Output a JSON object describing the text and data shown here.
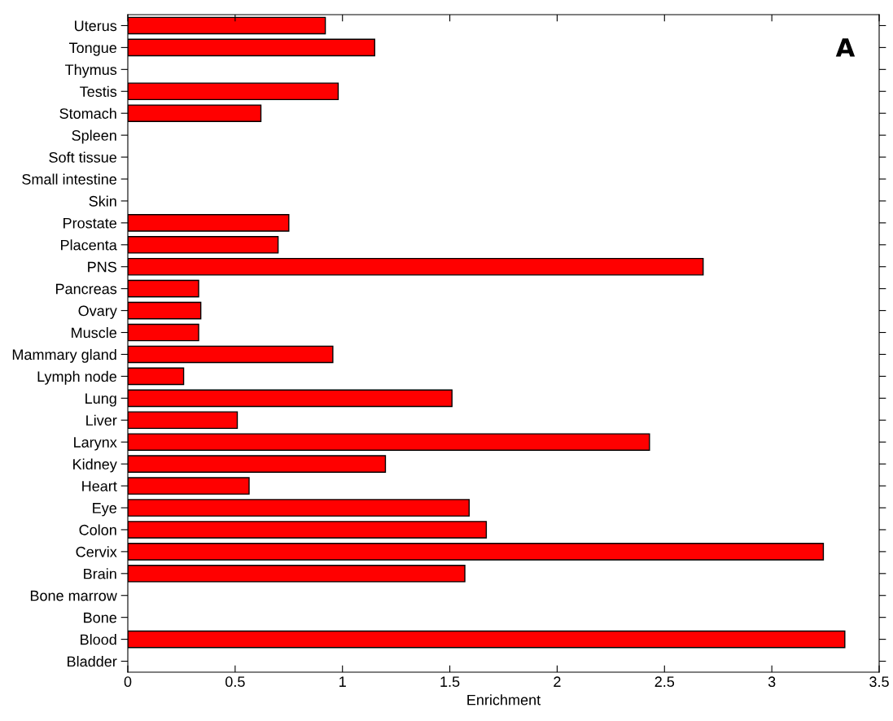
{
  "chart_data": {
    "type": "bar",
    "orientation": "horizontal",
    "xlabel": "Enrichment",
    "annotations": [
      "A"
    ],
    "categories": [
      "Uterus",
      "Tongue",
      "Thymus",
      "Testis",
      "Stomach",
      "Spleen",
      "Soft tissue",
      "Small intestine",
      "Skin",
      "Prostate",
      "Placenta",
      "PNS",
      "Pancreas",
      "Ovary",
      "Muscle",
      "Mammary gland",
      "Lymph node",
      "Lung",
      "Liver",
      "Larynx",
      "Kidney",
      "Heart",
      "Eye",
      "Colon",
      "Cervix",
      "Brain",
      "Bone marrow",
      "Bone",
      "Blood",
      "Bladder"
    ],
    "values": [
      0.92,
      1.15,
      null,
      0.98,
      0.62,
      null,
      null,
      null,
      null,
      0.75,
      0.7,
      2.68,
      0.33,
      0.34,
      0.33,
      0.955,
      0.26,
      1.51,
      0.51,
      2.43,
      1.2,
      0.565,
      1.59,
      1.67,
      3.24,
      1.57,
      null,
      null,
      3.34,
      null
    ],
    "color": "#ff0000",
    "xlim": [
      0,
      3.5
    ],
    "xticks": [
      0,
      0.5,
      1,
      1.5,
      2,
      2.5,
      3,
      3.5
    ],
    "grid": false
  }
}
